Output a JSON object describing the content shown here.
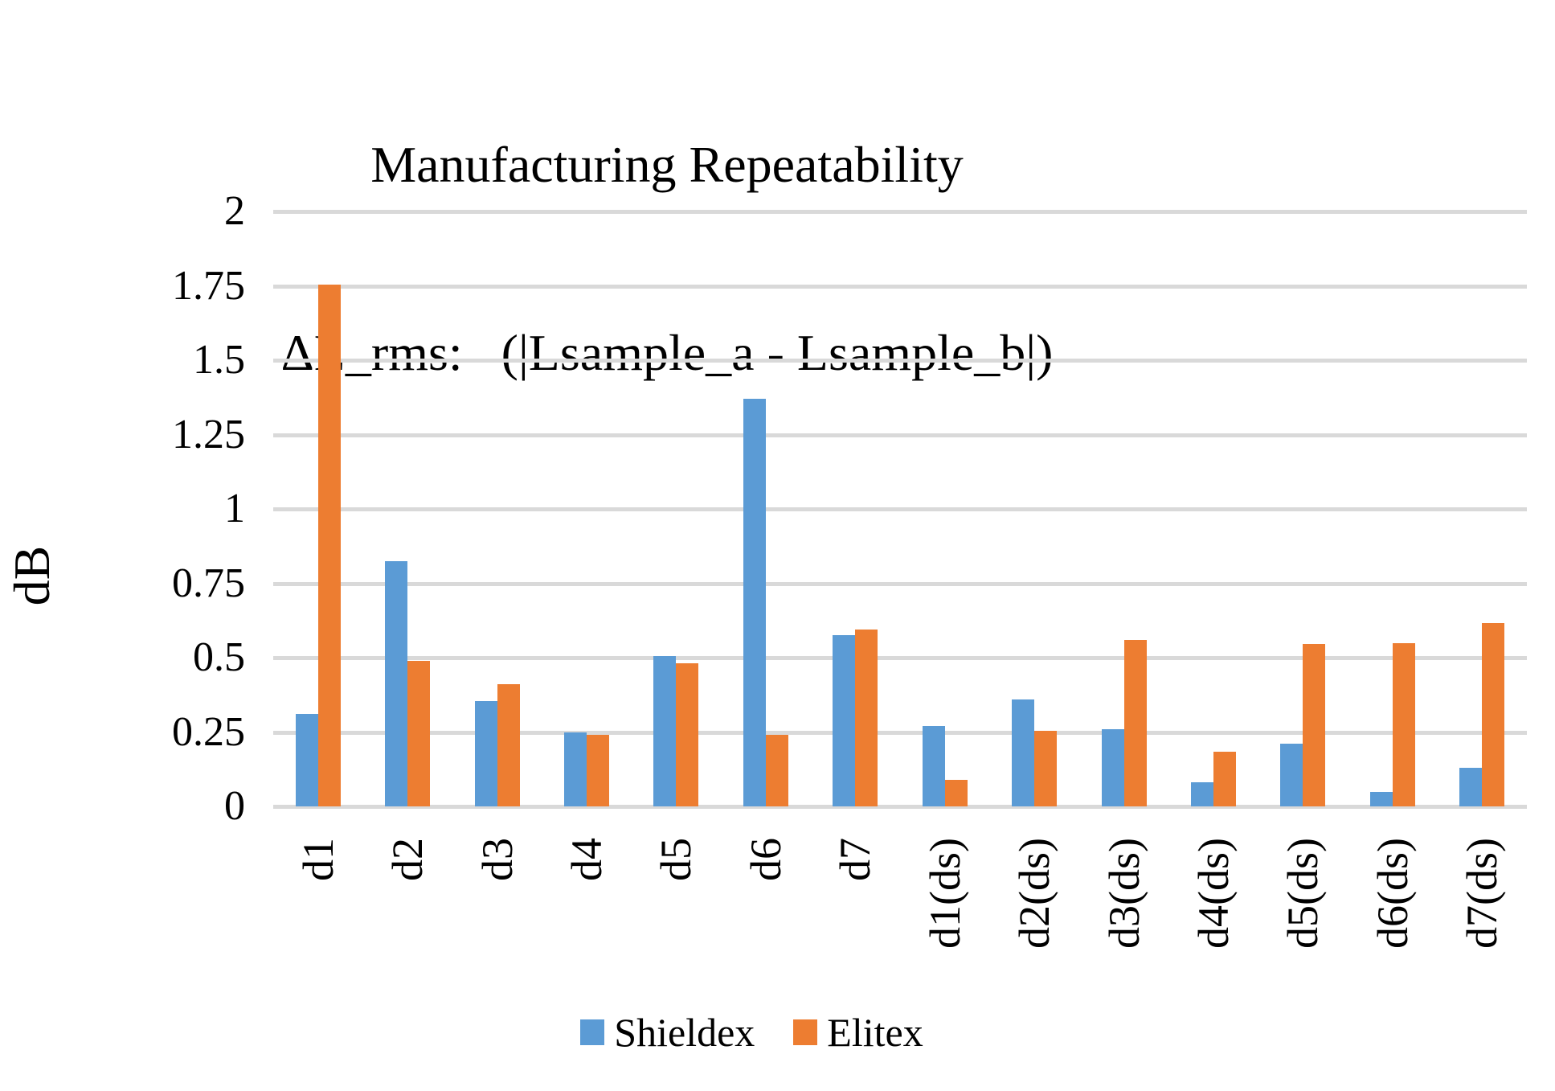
{
  "title": {
    "line1": "Manufacturing Repeatability",
    "line2": "ΔL_rms:   (|Lsample_a - Lsample_b|)"
  },
  "y_axis": {
    "title": "dB",
    "ticks": [
      "2",
      "1.75",
      "1.5",
      "1.25",
      "1",
      "0.75",
      "0.5",
      "0.25",
      "0"
    ]
  },
  "legend": [
    {
      "label": "Shieldex",
      "color": "#5B9BD5"
    },
    {
      "label": "Elitex",
      "color": "#ED7D31"
    }
  ],
  "colors": {
    "shieldex_blue": "#5B9BD5",
    "elitex_orange": "#ED7D31",
    "gridline_gray": "#D9D9D9",
    "text_black": "#000000"
  },
  "chart_data": {
    "type": "bar",
    "title": "Manufacturing Repeatability ΔL_rms: (|Lsample_a - Lsample_b|)",
    "ylabel": "dB",
    "ylim": [
      0,
      2
    ],
    "ytick_step": 0.25,
    "grid": true,
    "legend_position": "bottom",
    "categories": [
      "d1",
      "d2",
      "d3",
      "d4",
      "d5",
      "d6",
      "d7",
      "d1(ds)",
      "d2(ds)",
      "d3(ds)",
      "d4(ds)",
      "d5(ds)",
      "d6(ds)",
      "d7(ds)"
    ],
    "series": [
      {
        "name": "Shieldex",
        "color": "#5B9BD5",
        "values": [
          0.31,
          0.825,
          0.355,
          0.25,
          0.505,
          1.37,
          0.575,
          0.27,
          0.36,
          0.26,
          0.08,
          0.21,
          0.05,
          0.13
        ]
      },
      {
        "name": "Elitex",
        "color": "#ED7D31",
        "values": [
          1.755,
          0.49,
          0.41,
          0.24,
          0.48,
          0.24,
          0.595,
          0.09,
          0.255,
          0.56,
          0.185,
          0.545,
          0.55,
          0.615
        ]
      }
    ]
  }
}
